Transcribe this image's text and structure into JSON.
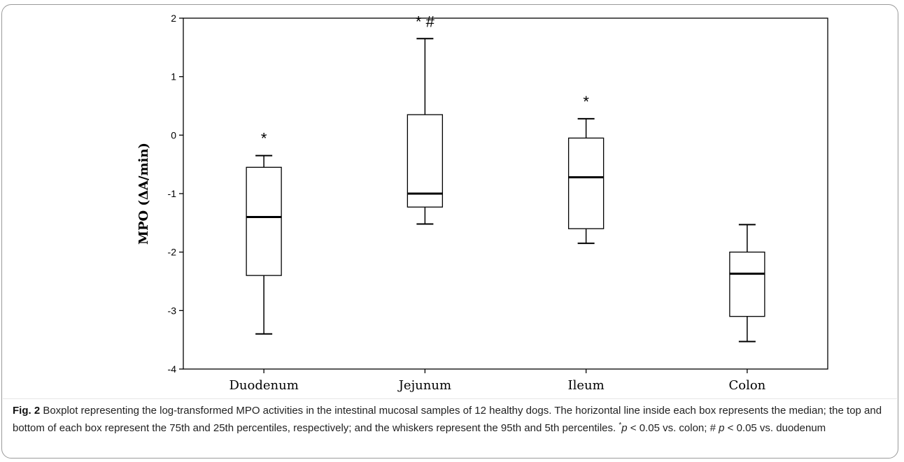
{
  "chart_data": {
    "type": "boxplot",
    "title": "",
    "xlabel": "",
    "ylabel": "MPO (ΔA/min)",
    "ylim": [
      -4,
      2
    ],
    "yticks": [
      "2",
      "1",
      "0",
      "-1",
      "-2",
      "-3",
      "-4"
    ],
    "grid": false,
    "categories": [
      "Duodenum",
      "Jejunum",
      "Ileum",
      "Colon"
    ],
    "boxes": [
      {
        "category": "Duodenum",
        "whisker_low": -3.4,
        "q1": -2.4,
        "median": -1.4,
        "q3": -0.55,
        "whisker_high": -0.35,
        "annotation": "*"
      },
      {
        "category": "Jejunum",
        "whisker_low": -1.52,
        "q1": -1.23,
        "median": -1.0,
        "q3": 0.35,
        "whisker_high": 1.65,
        "annotation": "* #"
      },
      {
        "category": "Ileum",
        "whisker_low": -1.85,
        "q1": -1.6,
        "median": -0.72,
        "q3": -0.05,
        "whisker_high": 0.28,
        "annotation": "*"
      },
      {
        "category": "Colon",
        "whisker_low": -3.53,
        "q1": -3.1,
        "median": -2.37,
        "q3": -2.0,
        "whisker_high": -1.53,
        "annotation": ""
      }
    ]
  },
  "caption": {
    "label": "Fig. 2",
    "text_main": " Boxplot representing the log-transformed MPO activities in the intestinal mucosal samples of 12 healthy dogs. The horizontal line inside each box represents the median; the top and bottom of each box represent the 75th and 25th percentiles, respectively; and the whiskers represent the 95th and 5th percentiles. ",
    "sup_mark": "*",
    "p_symbol_1": "p",
    "text_sig1": " < 0.05 vs. colon; # ",
    "p_symbol_2": "p",
    "text_sig2": " < 0.05 vs. duodenum"
  }
}
